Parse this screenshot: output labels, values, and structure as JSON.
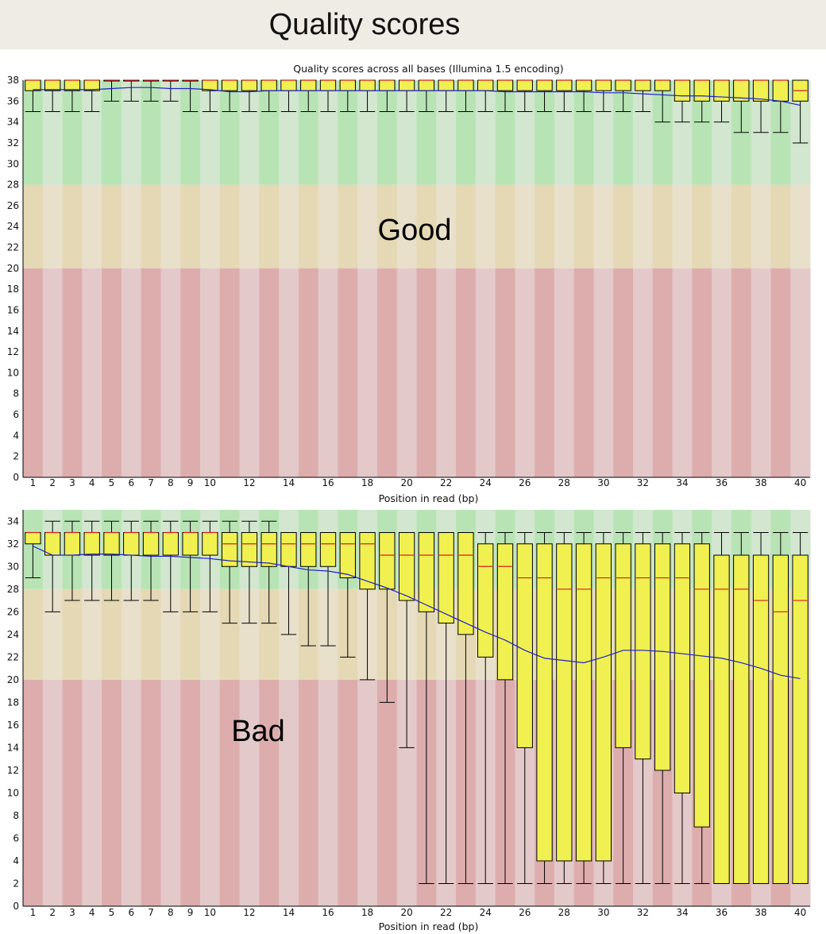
{
  "page": {
    "title": "Quality scores"
  },
  "colors": {
    "good_band_dark": "#b8e4b5",
    "good_band_light": "#d2e6d0",
    "mid_band_dark": "#e4d9b4",
    "mid_band_light": "#e8e0cb",
    "bad_band_dark": "#ddadae",
    "bad_band_light": "#e3c9ca",
    "box_fill": "#f0f050",
    "median": "#d22020",
    "mean_line": "#2020c8",
    "axis": "#000000"
  },
  "chart_data": [
    {
      "id": "good",
      "type": "box",
      "title": "Quality scores across all bases (Illumina 1.5 encoding)",
      "xlabel": "Position in read (bp)",
      "ylabel": "",
      "annotation": "Good",
      "ylim": [
        0,
        38
      ],
      "yticks": [
        0,
        2,
        4,
        6,
        8,
        10,
        12,
        14,
        16,
        18,
        20,
        22,
        24,
        26,
        28,
        30,
        32,
        34,
        36,
        38
      ],
      "xticks": [
        1,
        2,
        3,
        4,
        5,
        6,
        7,
        8,
        9,
        10,
        12,
        14,
        16,
        18,
        20,
        22,
        24,
        26,
        28,
        30,
        32,
        34,
        36,
        38,
        40
      ],
      "bands": [
        {
          "from": 28,
          "to": 38,
          "zone": "good"
        },
        {
          "from": 20,
          "to": 28,
          "zone": "mid"
        },
        {
          "from": 0,
          "to": 20,
          "zone": "bad"
        }
      ],
      "positions": [
        1,
        2,
        3,
        4,
        5,
        6,
        7,
        8,
        9,
        10,
        11,
        12,
        13,
        14,
        15,
        16,
        17,
        18,
        19,
        20,
        21,
        22,
        23,
        24,
        25,
        26,
        27,
        28,
        29,
        30,
        31,
        32,
        33,
        34,
        35,
        36,
        37,
        38,
        39,
        40
      ],
      "q1": [
        37,
        37,
        37,
        37,
        38,
        38,
        38,
        38,
        38,
        37,
        37,
        37,
        37,
        37,
        37,
        37,
        37,
        37,
        37,
        37,
        37,
        37,
        37,
        37,
        37,
        37,
        37,
        37,
        37,
        37,
        37,
        37,
        37,
        36,
        36,
        36,
        36,
        36,
        36,
        36
      ],
      "median": [
        38,
        38,
        38,
        38,
        38,
        38,
        38,
        38,
        38,
        38,
        38,
        38,
        38,
        38,
        38,
        38,
        38,
        38,
        38,
        38,
        38,
        38,
        38,
        38,
        38,
        38,
        38,
        38,
        38,
        38,
        38,
        38,
        38,
        38,
        38,
        38,
        38,
        38,
        38,
        37
      ],
      "q3": [
        38,
        38,
        38,
        38,
        38,
        38,
        38,
        38,
        38,
        38,
        38,
        38,
        38,
        38,
        38,
        38,
        38,
        38,
        38,
        38,
        38,
        38,
        38,
        38,
        38,
        38,
        38,
        38,
        38,
        38,
        38,
        38,
        38,
        38,
        38,
        38,
        38,
        38,
        38,
        38
      ],
      "lower": [
        35,
        35,
        35,
        35,
        36,
        36,
        36,
        36,
        35,
        35,
        35,
        35,
        35,
        35,
        35,
        35,
        35,
        35,
        35,
        35,
        35,
        35,
        35,
        35,
        35,
        35,
        35,
        35,
        35,
        35,
        35,
        35,
        34,
        34,
        34,
        34,
        33,
        33,
        33,
        32
      ],
      "upper": [
        38,
        38,
        38,
        38,
        38,
        38,
        38,
        38,
        38,
        38,
        38,
        38,
        38,
        38,
        38,
        38,
        38,
        38,
        38,
        38,
        38,
        38,
        38,
        38,
        38,
        38,
        38,
        38,
        38,
        38,
        38,
        38,
        38,
        38,
        38,
        38,
        38,
        38,
        38,
        38
      ],
      "mean": [
        37.1,
        37.1,
        37.1,
        37.1,
        37.2,
        37.3,
        37.3,
        37.2,
        37.2,
        37.1,
        36.9,
        36.9,
        37.0,
        37.0,
        37.0,
        37.0,
        37.0,
        37.0,
        37.0,
        37.0,
        37.0,
        37.0,
        37.0,
        37.0,
        36.9,
        36.9,
        36.9,
        36.9,
        36.9,
        36.8,
        36.8,
        36.7,
        36.6,
        36.5,
        36.5,
        36.4,
        36.3,
        36.2,
        36.0,
        35.6
      ]
    },
    {
      "id": "bad",
      "type": "box",
      "title": "",
      "xlabel": "Position in read (bp)",
      "ylabel": "",
      "annotation": "Bad",
      "ylim": [
        0,
        35
      ],
      "yticks": [
        0,
        2,
        4,
        6,
        8,
        10,
        12,
        14,
        16,
        18,
        20,
        22,
        24,
        26,
        28,
        30,
        32,
        34
      ],
      "xticks": [
        1,
        2,
        3,
        4,
        5,
        6,
        7,
        8,
        9,
        10,
        12,
        14,
        16,
        18,
        20,
        22,
        24,
        26,
        28,
        30,
        32,
        34,
        36,
        38,
        40
      ],
      "bands": [
        {
          "from": 28,
          "to": 35,
          "zone": "good"
        },
        {
          "from": 20,
          "to": 28,
          "zone": "mid"
        },
        {
          "from": 0,
          "to": 20,
          "zone": "bad"
        }
      ],
      "positions": [
        1,
        2,
        3,
        4,
        5,
        6,
        7,
        8,
        9,
        10,
        11,
        12,
        13,
        14,
        15,
        16,
        17,
        18,
        19,
        20,
        21,
        22,
        23,
        24,
        25,
        26,
        27,
        28,
        29,
        30,
        31,
        32,
        33,
        34,
        35,
        36,
        37,
        38,
        39,
        40
      ],
      "q1": [
        32,
        31,
        31,
        31,
        31,
        31,
        31,
        31,
        31,
        31,
        30,
        30,
        30,
        30,
        30,
        30,
        29,
        28,
        28,
        27,
        26,
        25,
        24,
        22,
        20,
        14,
        4,
        4,
        4,
        4,
        14,
        13,
        12,
        10,
        7,
        2,
        2,
        2,
        2,
        2
      ],
      "median": [
        33,
        33,
        33,
        33,
        33,
        33,
        33,
        33,
        33,
        33,
        32,
        32,
        32,
        32,
        32,
        32,
        32,
        32,
        31,
        31,
        31,
        31,
        31,
        30,
        30,
        29,
        29,
        28,
        28,
        29,
        29,
        29,
        29,
        29,
        28,
        28,
        28,
        27,
        26,
        27
      ],
      "q3": [
        33,
        33,
        33,
        33,
        33,
        33,
        33,
        33,
        33,
        33,
        33,
        33,
        33,
        33,
        33,
        33,
        33,
        33,
        33,
        33,
        33,
        33,
        33,
        32,
        32,
        32,
        32,
        32,
        32,
        32,
        32,
        32,
        32,
        32,
        32,
        31,
        31,
        31,
        31,
        31
      ],
      "lower": [
        29,
        26,
        27,
        27,
        27,
        27,
        27,
        26,
        26,
        26,
        25,
        25,
        25,
        24,
        23,
        23,
        22,
        20,
        18,
        14,
        2,
        2,
        2,
        2,
        2,
        2,
        2,
        2,
        2,
        2,
        2,
        2,
        2,
        2,
        2,
        2,
        2,
        2,
        2,
        2
      ],
      "upper": [
        33,
        34,
        34,
        34,
        34,
        34,
        34,
        34,
        34,
        34,
        34,
        34,
        34,
        33,
        33,
        33,
        33,
        33,
        33,
        33,
        33,
        33,
        33,
        33,
        33,
        33,
        33,
        33,
        33,
        33,
        33,
        33,
        33,
        33,
        33,
        33,
        33,
        33,
        33,
        33
      ],
      "mean": [
        31.8,
        31.0,
        31.0,
        31.1,
        31.1,
        31.0,
        30.9,
        30.9,
        30.8,
        30.7,
        30.5,
        30.4,
        30.3,
        30.0,
        29.7,
        29.6,
        29.3,
        28.7,
        28.1,
        27.4,
        26.6,
        25.8,
        25.0,
        24.2,
        23.5,
        22.6,
        21.9,
        21.7,
        21.5,
        22.0,
        22.6,
        22.6,
        22.5,
        22.3,
        22.1,
        21.9,
        21.5,
        21.0,
        20.4,
        20.1
      ]
    }
  ]
}
